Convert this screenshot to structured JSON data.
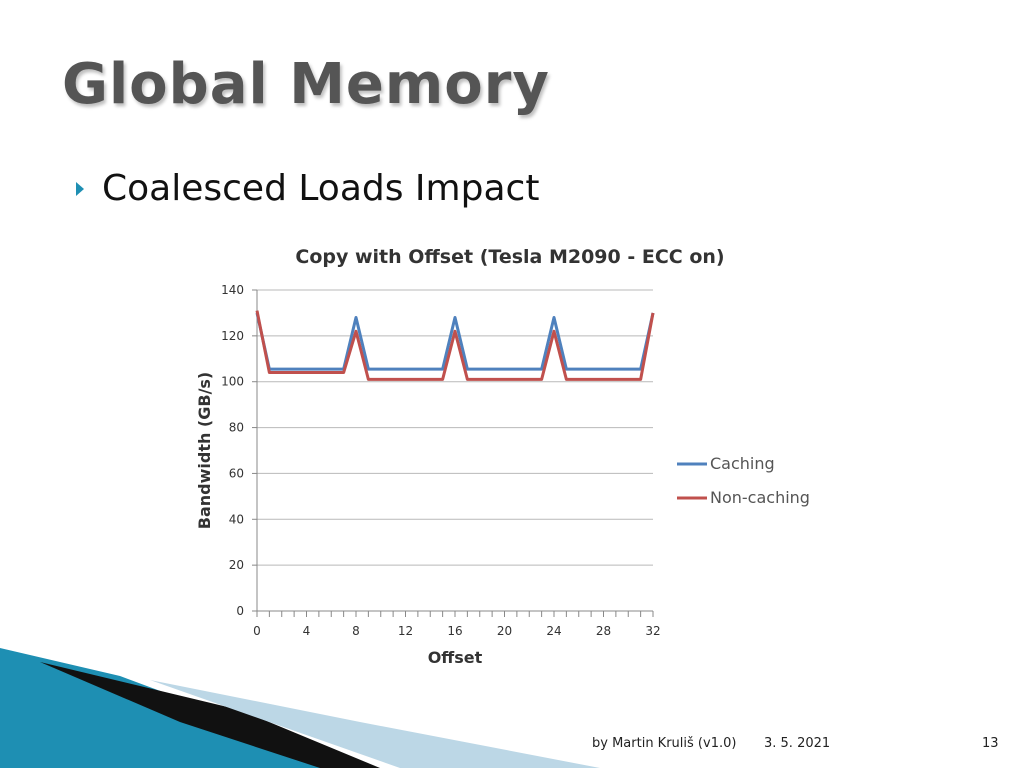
{
  "slide": {
    "title": "Global Memory",
    "bullet": "Coalesced Loads Impact"
  },
  "footer": {
    "author": "by Martin Kruliš (v1.0)",
    "date": "3. 5. 2021",
    "page": "13"
  },
  "colors": {
    "caching": "#4f81bd",
    "non_caching": "#c0504d",
    "bullet": "#1e8fb3",
    "deco_primary": "#1e8fb3"
  },
  "chart_data": {
    "type": "line",
    "title": "Copy with Offset (Tesla M2090 - ECC on)",
    "xlabel": "Offset",
    "ylabel": "Bandwidth (GB/s)",
    "xlim": [
      0,
      32
    ],
    "ylim": [
      0,
      140
    ],
    "x_ticks": [
      "0",
      "4",
      "8",
      "12",
      "16",
      "20",
      "24",
      "28",
      "32"
    ],
    "y_ticks": [
      "0",
      "20",
      "40",
      "60",
      "80",
      "100",
      "120",
      "140"
    ],
    "grid": true,
    "legend_position": "right",
    "x": [
      0,
      1,
      2,
      3,
      4,
      5,
      6,
      7,
      8,
      9,
      10,
      11,
      12,
      13,
      14,
      15,
      16,
      17,
      18,
      19,
      20,
      21,
      22,
      23,
      24,
      25,
      26,
      27,
      28,
      29,
      30,
      31,
      32
    ],
    "series": [
      {
        "name": "Caching",
        "values": [
          130,
          105.5,
          105.5,
          105.5,
          105.5,
          105.5,
          105.5,
          105.5,
          128,
          105.5,
          105.5,
          105.5,
          105.5,
          105.5,
          105.5,
          105.5,
          128,
          105.5,
          105.5,
          105.5,
          105.5,
          105.5,
          105.5,
          105.5,
          128,
          105.5,
          105.5,
          105.5,
          105.5,
          105.5,
          105.5,
          105.5,
          130
        ]
      },
      {
        "name": "Non-caching",
        "values": [
          131,
          104,
          104,
          104,
          104,
          104,
          104,
          104,
          122,
          101,
          101,
          101,
          101,
          101,
          101,
          101,
          122,
          101,
          101,
          101,
          101,
          101,
          101,
          101,
          122,
          101,
          101,
          101,
          101,
          101,
          101,
          101,
          130
        ]
      }
    ]
  }
}
